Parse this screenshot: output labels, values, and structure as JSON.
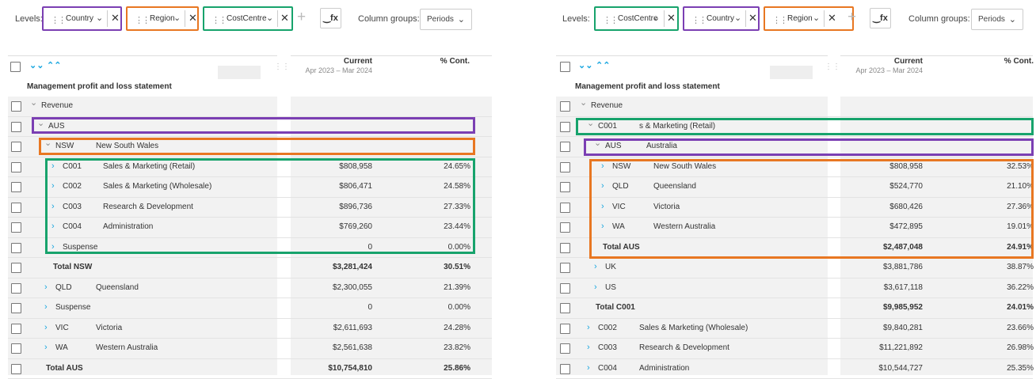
{
  "colors": {
    "country": "#7b3fb3",
    "region": "#e87722",
    "costcentre": "#17a36c",
    "accent": "#1aa7e0"
  },
  "toolbar": {
    "levels_label": "Levels:",
    "column_groups_label": "Column groups:",
    "periods_value": "Periods",
    "fx_label": "‿fx"
  },
  "left": {
    "chips": [
      {
        "label": "Country",
        "color": "country"
      },
      {
        "label": "Region",
        "color": "region"
      },
      {
        "label": "CostCentre",
        "color": "costcentre"
      }
    ],
    "table_title": "Management profit and loss statement",
    "columns": [
      {
        "title": "Current",
        "subtitle": "Apr 2023 – Mar 2024"
      },
      {
        "title": "% Cont.",
        "subtitle": ""
      }
    ],
    "rows": [
      {
        "code": "Revenue",
        "desc": "",
        "value": "",
        "pct": "",
        "arrow": "open",
        "indent": 0,
        "total": false
      },
      {
        "code": "AUS",
        "desc": "",
        "value": "",
        "pct": "",
        "arrow": "open",
        "indent": 1,
        "total": false
      },
      {
        "code": "NSW",
        "desc": "New South Wales",
        "value": "",
        "pct": "",
        "arrow": "open",
        "indent": 2,
        "total": false
      },
      {
        "code": "C001",
        "desc": "Sales & Marketing (Retail)",
        "value": "$808,958",
        "pct": "24.65%",
        "arrow": "closed",
        "indent": 3,
        "total": false
      },
      {
        "code": "C002",
        "desc": "Sales & Marketing (Wholesale)",
        "value": "$806,471",
        "pct": "24.58%",
        "arrow": "closed",
        "indent": 3,
        "total": false
      },
      {
        "code": "C003",
        "desc": "Research & Development",
        "value": "$896,736",
        "pct": "27.33%",
        "arrow": "closed",
        "indent": 3,
        "total": false
      },
      {
        "code": "C004",
        "desc": "Administration",
        "value": "$769,260",
        "pct": "23.44%",
        "arrow": "closed",
        "indent": 3,
        "total": false
      },
      {
        "code": "Suspense",
        "desc": "",
        "value": "0",
        "pct": "0.00%",
        "arrow": "closed",
        "indent": 3,
        "total": false
      },
      {
        "code": "Total NSW",
        "desc": "",
        "value": "$3,281,424",
        "pct": "30.51%",
        "arrow": "none",
        "indent": 3,
        "total": true
      },
      {
        "code": "QLD",
        "desc": "Queensland",
        "value": "$2,300,055",
        "pct": "21.39%",
        "arrow": "closed",
        "indent": 2,
        "total": false
      },
      {
        "code": "Suspense",
        "desc": "",
        "value": "0",
        "pct": "0.00%",
        "arrow": "closed",
        "indent": 2,
        "total": false
      },
      {
        "code": "VIC",
        "desc": "Victoria",
        "value": "$2,611,693",
        "pct": "24.28%",
        "arrow": "closed",
        "indent": 2,
        "total": false
      },
      {
        "code": "WA",
        "desc": "Western Australia",
        "value": "$2,561,638",
        "pct": "23.82%",
        "arrow": "closed",
        "indent": 2,
        "total": false
      },
      {
        "code": "Total AUS",
        "desc": "",
        "value": "$10,754,810",
        "pct": "25.86%",
        "arrow": "none",
        "indent": 2,
        "total": true
      }
    ]
  },
  "right": {
    "chips": [
      {
        "label": "CostCentre",
        "color": "costcentre"
      },
      {
        "label": "Country",
        "color": "country"
      },
      {
        "label": "Region",
        "color": "region"
      }
    ],
    "table_title": "Management profit and loss statement",
    "columns": [
      {
        "title": "Current",
        "subtitle": "Apr 2023 – Mar 2024"
      },
      {
        "title": "% Cont.",
        "subtitle": ""
      }
    ],
    "rows": [
      {
        "code": "Revenue",
        "desc": "",
        "value": "",
        "pct": "",
        "arrow": "open",
        "indent": 0,
        "total": false
      },
      {
        "code": "C001",
        "desc": "s & Marketing (Retail)",
        "value": "",
        "pct": "",
        "arrow": "open",
        "indent": 1,
        "total": false
      },
      {
        "code": "AUS",
        "desc": "Australia",
        "value": "",
        "pct": "",
        "arrow": "open",
        "indent": 2,
        "total": false
      },
      {
        "code": "NSW",
        "desc": "New South Wales",
        "value": "$808,958",
        "pct": "32.53%",
        "arrow": "closed",
        "indent": 3,
        "total": false
      },
      {
        "code": "QLD",
        "desc": "Queensland",
        "value": "$524,770",
        "pct": "21.10%",
        "arrow": "closed",
        "indent": 3,
        "total": false
      },
      {
        "code": "VIC",
        "desc": "Victoria",
        "value": "$680,426",
        "pct": "27.36%",
        "arrow": "closed",
        "indent": 3,
        "total": false
      },
      {
        "code": "WA",
        "desc": "Western Australia",
        "value": "$472,895",
        "pct": "19.01%",
        "arrow": "closed",
        "indent": 3,
        "total": false
      },
      {
        "code": "Total AUS",
        "desc": "",
        "value": "$2,487,048",
        "pct": "24.91%",
        "arrow": "none",
        "indent": 3,
        "total": true
      },
      {
        "code": "UK",
        "desc": "",
        "value": "$3,881,786",
        "pct": "38.87%",
        "arrow": "closed",
        "indent": 2,
        "total": false
      },
      {
        "code": "US",
        "desc": "",
        "value": "$3,617,118",
        "pct": "36.22%",
        "arrow": "closed",
        "indent": 2,
        "total": false
      },
      {
        "code": "Total C001",
        "desc": "",
        "value": "$9,985,952",
        "pct": "24.01%",
        "arrow": "none",
        "indent": 2,
        "total": true
      },
      {
        "code": "C002",
        "desc": "Sales & Marketing (Wholesale)",
        "value": "$9,840,281",
        "pct": "23.66%",
        "arrow": "closed",
        "indent": 1,
        "total": false
      },
      {
        "code": "C003",
        "desc": "Research & Development",
        "value": "$11,221,892",
        "pct": "26.98%",
        "arrow": "closed",
        "indent": 1,
        "total": false
      },
      {
        "code": "C004",
        "desc": "Administration",
        "value": "$10,544,727",
        "pct": "25.35%",
        "arrow": "closed",
        "indent": 1,
        "total": false
      }
    ]
  }
}
